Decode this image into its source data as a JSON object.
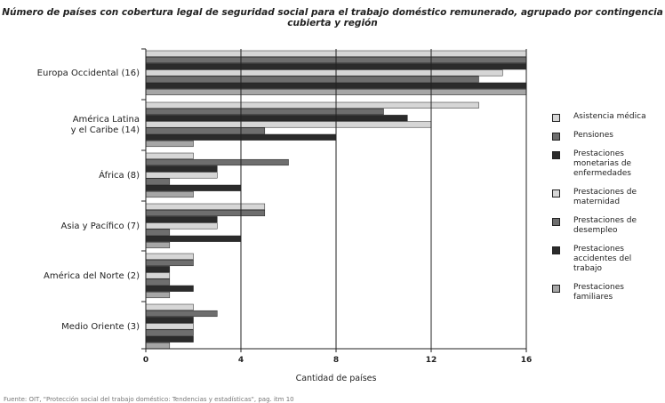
{
  "chart_data": {
    "type": "bar",
    "orientation": "horizontal",
    "title": "Número de países con cobertura legal de seguridad social para el trabajo doméstico remunerado, agrupado por contingencia cubierta y región",
    "xlabel": "Cantidad de países",
    "ylabel": "",
    "xlim": [
      0,
      16
    ],
    "xticks": [
      "0",
      "4",
      "8",
      "12",
      "16"
    ],
    "grid": "vertical lines at 4, 8, 12, 16",
    "legend_position": "right",
    "categories": [
      "Europa Occidental (16)",
      "América Latina y el Caribe (14)",
      "África (8)",
      "Asia y Pacífico (7)",
      "América del Norte (2)",
      "Medio Oriente (3)"
    ],
    "series": [
      {
        "name": "Asistencia médica",
        "color": "#d6d6d6",
        "values": [
          16,
          14,
          2,
          5,
          2,
          2
        ]
      },
      {
        "name": "Pensiones",
        "color": "#6e6e6e",
        "values": [
          16,
          10,
          6,
          5,
          2,
          3
        ]
      },
      {
        "name": "Prestaciones monetarias de enfermedades",
        "color": "#2b2b2b",
        "values": [
          16,
          11,
          3,
          3,
          1,
          2
        ]
      },
      {
        "name": "Prestaciones de maternidad",
        "color": "#d6d6d6",
        "values": [
          15,
          12,
          3,
          3,
          1,
          2
        ]
      },
      {
        "name": "Prestaciones de desempleo",
        "color": "#6e6e6e",
        "values": [
          14,
          5,
          1,
          1,
          1,
          2
        ]
      },
      {
        "name": "Prestaciones accidentes del trabajo",
        "color": "#2b2b2b",
        "values": [
          16,
          8,
          4,
          4,
          2,
          2
        ]
      },
      {
        "name": "Prestaciones familiares",
        "color": "#a6a6a6",
        "values": [
          16,
          2,
          2,
          1,
          1,
          1
        ]
      }
    ]
  },
  "legend_labels": [
    "Asistencia médica",
    "Pensiones",
    "Prestaciones monetarias de enfermedades",
    "Prestaciones de maternidad",
    "Prestaciones de desempleo",
    "Prestaciones accidentes del trabajo",
    "Prestaciones familiares"
  ],
  "source_note": "Fuente: OIT, \"Protección social del trabajo doméstico: Tendencias y estadísticas\", pag. itm 10"
}
